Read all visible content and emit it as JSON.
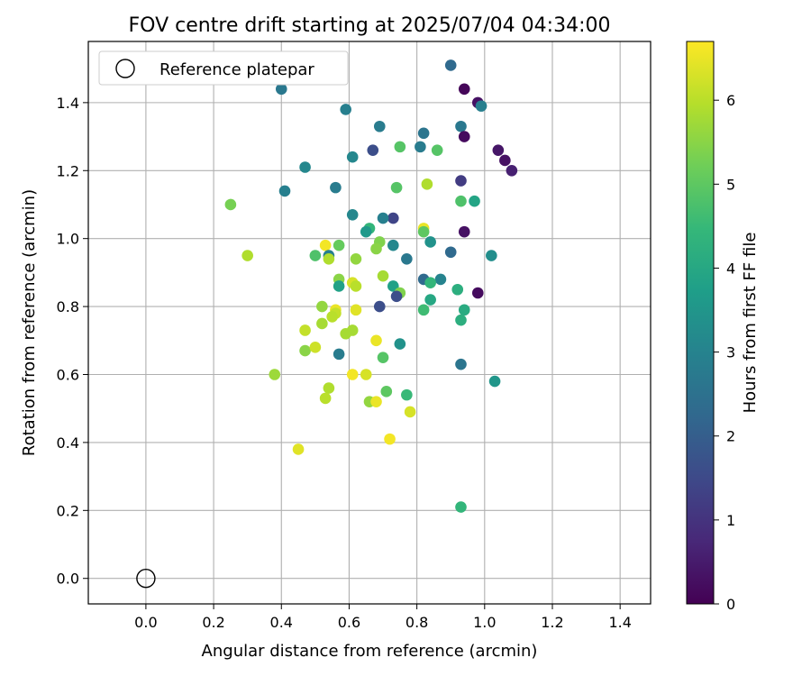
{
  "chart_data": {
    "type": "scatter",
    "title": "FOV centre drift starting at 2025/07/04 04:34:00",
    "xlabel": "Angular distance from reference (arcmin)",
    "ylabel": "Rotation from reference (arcmin)",
    "xlim": [
      -0.17,
      1.49
    ],
    "ylim": [
      -0.075,
      1.58
    ],
    "xticks": [
      "0.0",
      "0.2",
      "0.4",
      "0.6",
      "0.8",
      "1.0",
      "1.2",
      "1.4"
    ],
    "yticks": [
      "0.0",
      "0.2",
      "0.4",
      "0.6",
      "0.8",
      "1.0",
      "1.2",
      "1.4"
    ],
    "grid": true,
    "legend": {
      "placement": "top-left",
      "entries": [
        "Reference platepar"
      ]
    },
    "reference_point": {
      "x": 0.0,
      "y": 0.0
    },
    "colorbar": {
      "label": "Hours from first FF file",
      "range": [
        0,
        6.7
      ],
      "ticks": [
        "0",
        "1",
        "2",
        "3",
        "4",
        "5",
        "6"
      ],
      "colormap": "viridis",
      "colors": [
        "#440154",
        "#482878",
        "#3e4989",
        "#31688e",
        "#26828e",
        "#1f9e89",
        "#35b779",
        "#6ece58",
        "#b5de2b",
        "#fde725"
      ]
    },
    "points": [
      {
        "x": 0.9,
        "y": 1.51,
        "h": 2.3
      },
      {
        "x": 0.4,
        "y": 1.44,
        "h": 2.7
      },
      {
        "x": 0.94,
        "y": 1.44,
        "h": 0.1
      },
      {
        "x": 0.98,
        "y": 1.4,
        "h": 0.3
      },
      {
        "x": 0.99,
        "y": 1.39,
        "h": 2.9
      },
      {
        "x": 0.59,
        "y": 1.38,
        "h": 2.9
      },
      {
        "x": 0.69,
        "y": 1.33,
        "h": 2.8
      },
      {
        "x": 0.93,
        "y": 1.33,
        "h": 2.7
      },
      {
        "x": 0.82,
        "y": 1.31,
        "h": 2.6
      },
      {
        "x": 0.94,
        "y": 1.3,
        "h": 0.2
      },
      {
        "x": 0.75,
        "y": 1.27,
        "h": 4.9
      },
      {
        "x": 0.81,
        "y": 1.27,
        "h": 2.8
      },
      {
        "x": 0.86,
        "y": 1.26,
        "h": 4.9
      },
      {
        "x": 1.04,
        "y": 1.26,
        "h": 0.4
      },
      {
        "x": 0.67,
        "y": 1.26,
        "h": 1.6
      },
      {
        "x": 0.61,
        "y": 1.24,
        "h": 3.1
      },
      {
        "x": 1.06,
        "y": 1.23,
        "h": 0.3
      },
      {
        "x": 0.47,
        "y": 1.21,
        "h": 3.1
      },
      {
        "x": 1.08,
        "y": 1.2,
        "h": 0.6
      },
      {
        "x": 0.93,
        "y": 1.17,
        "h": 1.2
      },
      {
        "x": 0.83,
        "y": 1.16,
        "h": 5.9
      },
      {
        "x": 0.56,
        "y": 1.15,
        "h": 2.8
      },
      {
        "x": 0.74,
        "y": 1.15,
        "h": 4.9
      },
      {
        "x": 0.41,
        "y": 1.14,
        "h": 2.9
      },
      {
        "x": 0.93,
        "y": 1.11,
        "h": 4.8
      },
      {
        "x": 0.97,
        "y": 1.11,
        "h": 3.9
      },
      {
        "x": 0.25,
        "y": 1.1,
        "h": 5.3
      },
      {
        "x": 0.61,
        "y": 1.07,
        "h": 3.1
      },
      {
        "x": 0.73,
        "y": 1.06,
        "h": 1.4
      },
      {
        "x": 0.7,
        "y": 1.06,
        "h": 2.9
      },
      {
        "x": 0.82,
        "y": 1.03,
        "h": 6.5
      },
      {
        "x": 0.94,
        "y": 1.02,
        "h": 0.3
      },
      {
        "x": 0.66,
        "y": 1.03,
        "h": 4.4
      },
      {
        "x": 0.65,
        "y": 1.02,
        "h": 3.6
      },
      {
        "x": 0.82,
        "y": 1.02,
        "h": 5.0
      },
      {
        "x": 0.84,
        "y": 0.99,
        "h": 3.4
      },
      {
        "x": 0.69,
        "y": 0.99,
        "h": 5.4
      },
      {
        "x": 0.57,
        "y": 0.98,
        "h": 5.1
      },
      {
        "x": 0.53,
        "y": 0.98,
        "h": 6.6
      },
      {
        "x": 0.73,
        "y": 0.98,
        "h": 3.1
      },
      {
        "x": 0.68,
        "y": 0.97,
        "h": 5.5
      },
      {
        "x": 0.9,
        "y": 0.96,
        "h": 2.3
      },
      {
        "x": 1.02,
        "y": 0.95,
        "h": 3.3
      },
      {
        "x": 0.3,
        "y": 0.95,
        "h": 5.9
      },
      {
        "x": 0.5,
        "y": 0.95,
        "h": 4.8
      },
      {
        "x": 0.54,
        "y": 0.95,
        "h": 2.9
      },
      {
        "x": 0.77,
        "y": 0.94,
        "h": 2.7
      },
      {
        "x": 0.62,
        "y": 0.94,
        "h": 5.6
      },
      {
        "x": 0.54,
        "y": 0.94,
        "h": 5.9
      },
      {
        "x": 0.7,
        "y": 0.89,
        "h": 5.8
      },
      {
        "x": 0.82,
        "y": 0.88,
        "h": 2.3
      },
      {
        "x": 0.87,
        "y": 0.88,
        "h": 3.0
      },
      {
        "x": 0.57,
        "y": 0.88,
        "h": 5.5
      },
      {
        "x": 0.61,
        "y": 0.87,
        "h": 6.3
      },
      {
        "x": 0.62,
        "y": 0.86,
        "h": 6.0
      },
      {
        "x": 0.84,
        "y": 0.87,
        "h": 4.4
      },
      {
        "x": 0.57,
        "y": 0.86,
        "h": 3.8
      },
      {
        "x": 0.73,
        "y": 0.86,
        "h": 3.8
      },
      {
        "x": 0.98,
        "y": 0.84,
        "h": 0.2
      },
      {
        "x": 0.92,
        "y": 0.85,
        "h": 4.2
      },
      {
        "x": 0.75,
        "y": 0.84,
        "h": 5.4
      },
      {
        "x": 0.74,
        "y": 0.83,
        "h": 1.6
      },
      {
        "x": 0.84,
        "y": 0.82,
        "h": 4.0
      },
      {
        "x": 0.52,
        "y": 0.8,
        "h": 5.6
      },
      {
        "x": 0.69,
        "y": 0.8,
        "h": 1.6
      },
      {
        "x": 0.82,
        "y": 0.79,
        "h": 4.6
      },
      {
        "x": 0.94,
        "y": 0.79,
        "h": 4.1
      },
      {
        "x": 0.56,
        "y": 0.79,
        "h": 6.5
      },
      {
        "x": 0.62,
        "y": 0.79,
        "h": 6.4
      },
      {
        "x": 0.56,
        "y": 0.78,
        "h": 6.1
      },
      {
        "x": 0.55,
        "y": 0.77,
        "h": 6.0
      },
      {
        "x": 0.93,
        "y": 0.76,
        "h": 4.2
      },
      {
        "x": 0.52,
        "y": 0.75,
        "h": 5.8
      },
      {
        "x": 0.47,
        "y": 0.73,
        "h": 6.1
      },
      {
        "x": 0.61,
        "y": 0.73,
        "h": 5.8
      },
      {
        "x": 0.59,
        "y": 0.72,
        "h": 5.8
      },
      {
        "x": 0.68,
        "y": 0.7,
        "h": 6.5
      },
      {
        "x": 0.75,
        "y": 0.69,
        "h": 3.4
      },
      {
        "x": 0.47,
        "y": 0.67,
        "h": 5.5
      },
      {
        "x": 0.5,
        "y": 0.68,
        "h": 6.2
      },
      {
        "x": 0.57,
        "y": 0.66,
        "h": 2.8
      },
      {
        "x": 0.7,
        "y": 0.65,
        "h": 4.9
      },
      {
        "x": 0.93,
        "y": 0.63,
        "h": 2.6
      },
      {
        "x": 0.38,
        "y": 0.6,
        "h": 5.7
      },
      {
        "x": 0.61,
        "y": 0.6,
        "h": 6.6
      },
      {
        "x": 0.65,
        "y": 0.6,
        "h": 6.3
      },
      {
        "x": 1.03,
        "y": 0.58,
        "h": 3.5
      },
      {
        "x": 0.54,
        "y": 0.56,
        "h": 5.9
      },
      {
        "x": 0.71,
        "y": 0.55,
        "h": 5.0
      },
      {
        "x": 0.77,
        "y": 0.54,
        "h": 4.5
      },
      {
        "x": 0.53,
        "y": 0.53,
        "h": 6.0
      },
      {
        "x": 0.66,
        "y": 0.52,
        "h": 5.6
      },
      {
        "x": 0.68,
        "y": 0.52,
        "h": 6.5
      },
      {
        "x": 0.78,
        "y": 0.49,
        "h": 6.3
      },
      {
        "x": 0.72,
        "y": 0.41,
        "h": 6.6
      },
      {
        "x": 0.45,
        "y": 0.38,
        "h": 6.4
      },
      {
        "x": 0.93,
        "y": 0.21,
        "h": 4.4
      }
    ]
  }
}
